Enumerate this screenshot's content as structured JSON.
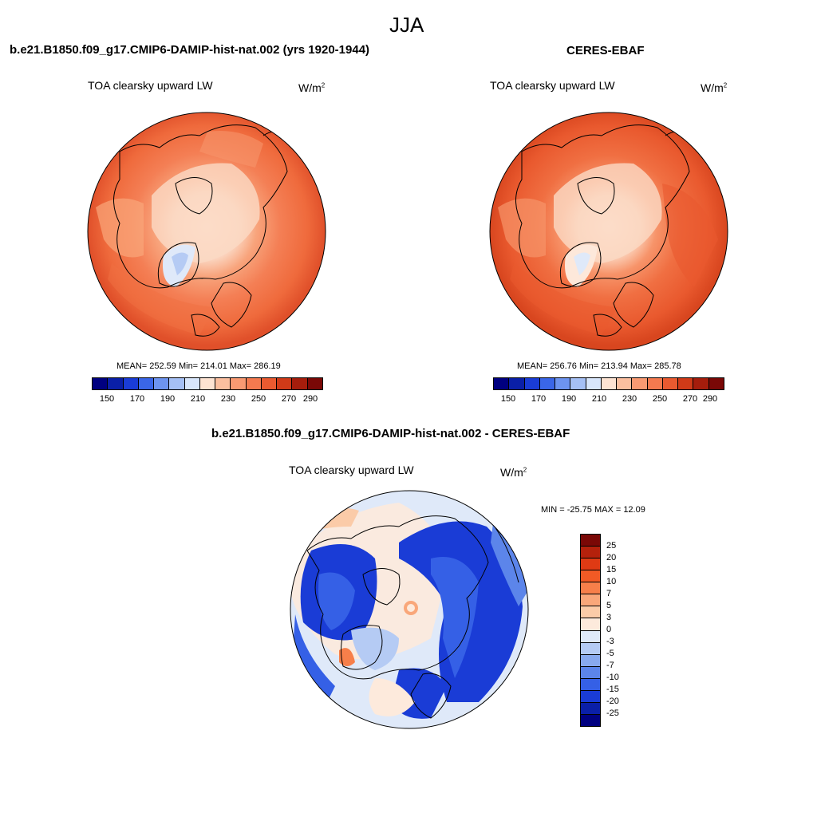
{
  "figure": {
    "season": "JJA",
    "panel_left_title": "b.e21.B1850.f09_g17.CMIP6-DAMIP-hist-nat.002 (yrs 1920-1944)",
    "panel_right_title": "CERES-EBAF",
    "panel_diff_title": "b.e21.B1850.f09_g17.CMIP6-DAMIP-hist-nat.002 - CERES-EBAF"
  },
  "panels": {
    "left": {
      "variable": "TOA clearsky upward LW",
      "units_base": "W/m",
      "units_exp": "2",
      "stats": "MEAN= 252.59  Min= 214.01  Max= 286.19"
    },
    "right": {
      "variable": "TOA clearsky upward LW",
      "units_base": "W/m",
      "units_exp": "2",
      "stats": "MEAN= 256.76  Min= 213.94  Max= 285.78"
    },
    "diff": {
      "variable": "TOA clearsky upward LW",
      "units_base": "W/m",
      "units_exp": "2",
      "stats": "MIN = -25.75 MAX =  12.09"
    }
  },
  "chart_data": [
    {
      "type": "map",
      "projection": "north-polar-stereographic",
      "title": "TOA clearsky upward LW",
      "units": "W/m2",
      "colorbar_levels": [
        "150",
        "170",
        "190",
        "210",
        "230",
        "250",
        "270",
        "290"
      ],
      "colorbar_colors": [
        "#000080",
        "#0a1fa8",
        "#1a3cd6",
        "#3a66e8",
        "#6d94f0",
        "#a5c0f5",
        "#d8e6fb",
        "#fde3d2",
        "#fbbf9f",
        "#f99a72",
        "#f47a4f",
        "#ea5a30",
        "#d03a18",
        "#a51d0c",
        "#7a0806"
      ],
      "mean": 252.59,
      "min": 214.01,
      "max": 286.19,
      "legend_position": "bottom"
    },
    {
      "type": "map",
      "projection": "north-polar-stereographic",
      "title": "TOA clearsky upward LW",
      "units": "W/m2",
      "colorbar_levels": [
        "150",
        "170",
        "190",
        "210",
        "230",
        "250",
        "270",
        "290"
      ],
      "mean": 256.76,
      "min": 213.94,
      "max": 285.78,
      "legend_position": "bottom"
    },
    {
      "type": "map",
      "projection": "north-polar-stereographic",
      "title": "TOA clearsky upward LW",
      "units": "W/m2",
      "colorbar_levels": [
        "25",
        "20",
        "15",
        "10",
        "7",
        "5",
        "3",
        "0",
        "-3",
        "-5",
        "-7",
        "-10",
        "-15",
        "-20",
        "-25"
      ],
      "colorbar_colors": [
        "#7a0806",
        "#b5210c",
        "#df3a14",
        "#f25a25",
        "#f77f4a",
        "#f9a77a",
        "#fbcba8",
        "#fdeadc",
        "#dfe9f9",
        "#b5cbf4",
        "#88a9ee",
        "#5c85ea",
        "#3560e6",
        "#1a3cd6",
        "#0a1fa8",
        "#000080"
      ],
      "min": -25.75,
      "max": 12.09,
      "legend_position": "right"
    }
  ]
}
